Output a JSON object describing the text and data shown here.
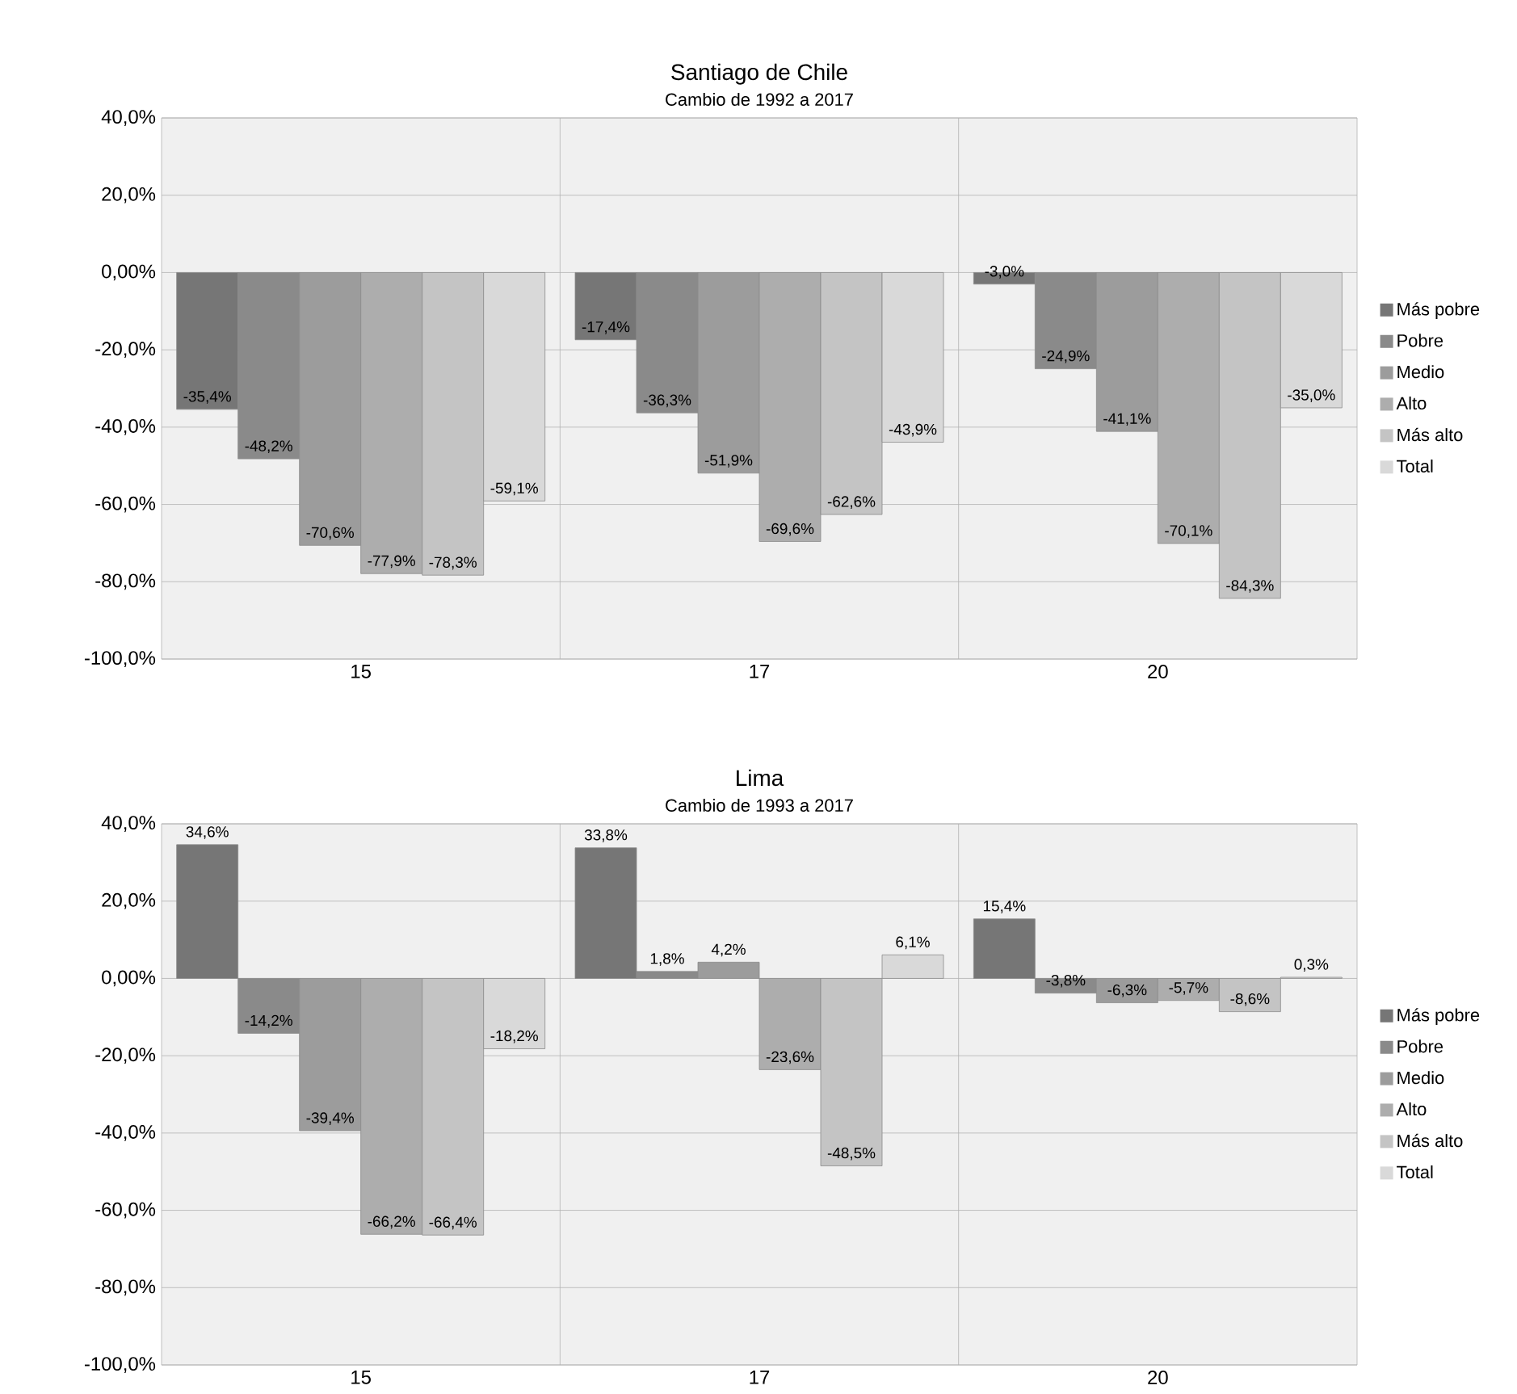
{
  "chart_data": [
    {
      "type": "bar",
      "title": "Santiago de Chile",
      "subtitle": "Cambio de 1992 a 2017",
      "categories": [
        "15",
        "17",
        "20"
      ],
      "series": [
        {
          "name": "Más pobre",
          "color": "#767676",
          "values": [
            -35.4,
            -17.4,
            -3.0
          ],
          "value_labels": [
            "-35,4%",
            "-17,4%",
            "-3,0%"
          ]
        },
        {
          "name": "Pobre",
          "color": "#8a8a8a",
          "values": [
            -48.2,
            -36.3,
            -24.9
          ],
          "value_labels": [
            "-48,2%",
            "-36,3%",
            "-24,9%"
          ]
        },
        {
          "name": "Medio",
          "color": "#9c9c9c",
          "values": [
            -70.6,
            -51.9,
            -41.1
          ],
          "value_labels": [
            "-70,6%",
            "-51,9%",
            "-41,1%"
          ]
        },
        {
          "name": "Alto",
          "color": "#adadad",
          "values": [
            -77.9,
            -69.6,
            -70.1
          ],
          "value_labels": [
            "-77,9%",
            "-69,6%",
            "-70,1%"
          ]
        },
        {
          "name": "Más alto",
          "color": "#c4c4c4",
          "values": [
            -78.3,
            -62.6,
            -84.3
          ],
          "value_labels": [
            "-78,3%",
            "-62,6%",
            "-84,3%"
          ]
        },
        {
          "name": "Total",
          "color": "#d9d9d9",
          "values": [
            -59.1,
            -43.9,
            -35.0
          ],
          "value_labels": [
            "-59,1%",
            "-43,9%",
            "-35,0%"
          ]
        }
      ],
      "ylim": [
        -100,
        40
      ],
      "yticks": [
        {
          "value": -100,
          "label": "-100,0%"
        },
        {
          "value": -80,
          "label": "-80,0%"
        },
        {
          "value": -60,
          "label": "-60,0%"
        },
        {
          "value": -40,
          "label": "-40,0%"
        },
        {
          "value": -20,
          "label": "-20,0%"
        },
        {
          "value": 0,
          "label": "0,00%"
        },
        {
          "value": 20,
          "label": "20,0%"
        },
        {
          "value": 40,
          "label": "40,0%"
        }
      ],
      "grid": true,
      "legend": "right"
    },
    {
      "type": "bar",
      "title": "Lima",
      "subtitle": "Cambio de 1993 a 2017",
      "categories": [
        "15",
        "17",
        "20"
      ],
      "series": [
        {
          "name": "Más pobre",
          "color": "#767676",
          "values": [
            34.6,
            33.8,
            15.4
          ],
          "value_labels": [
            "34,6%",
            "33,8%",
            "15,4%"
          ]
        },
        {
          "name": "Pobre",
          "color": "#8a8a8a",
          "values": [
            -14.2,
            1.8,
            -3.8
          ],
          "value_labels": [
            "-14,2%",
            "1,8%",
            "-3,8%"
          ]
        },
        {
          "name": "Medio",
          "color": "#9c9c9c",
          "values": [
            -39.4,
            4.2,
            -6.3
          ],
          "value_labels": [
            "-39,4%",
            "4,2%",
            "-6,3%"
          ]
        },
        {
          "name": "Alto",
          "color": "#adadad",
          "values": [
            -66.2,
            -23.6,
            -5.7
          ],
          "value_labels": [
            "-66,2%",
            "-23,6%",
            "-5,7%"
          ]
        },
        {
          "name": "Más alto",
          "color": "#c4c4c4",
          "values": [
            -66.4,
            -48.5,
            -8.6
          ],
          "value_labels": [
            "-66,4%",
            "-48,5%",
            "-8,6%"
          ]
        },
        {
          "name": "Total",
          "color": "#d9d9d9",
          "values": [
            -18.2,
            6.1,
            0.3
          ],
          "value_labels": [
            "-18,2%",
            "6,1%",
            "0,3%"
          ]
        }
      ],
      "ylim": [
        -100,
        40
      ],
      "yticks": [
        {
          "value": -100,
          "label": "-100,0%"
        },
        {
          "value": -80,
          "label": "-80,0%"
        },
        {
          "value": -60,
          "label": "-60,0%"
        },
        {
          "value": -40,
          "label": "-40,0%"
        },
        {
          "value": -20,
          "label": "-20,0%"
        },
        {
          "value": 0,
          "label": "0,00%"
        },
        {
          "value": 20,
          "label": "20,0%"
        },
        {
          "value": 40,
          "label": "40,0%"
        }
      ],
      "grid": true,
      "legend": "right"
    }
  ]
}
